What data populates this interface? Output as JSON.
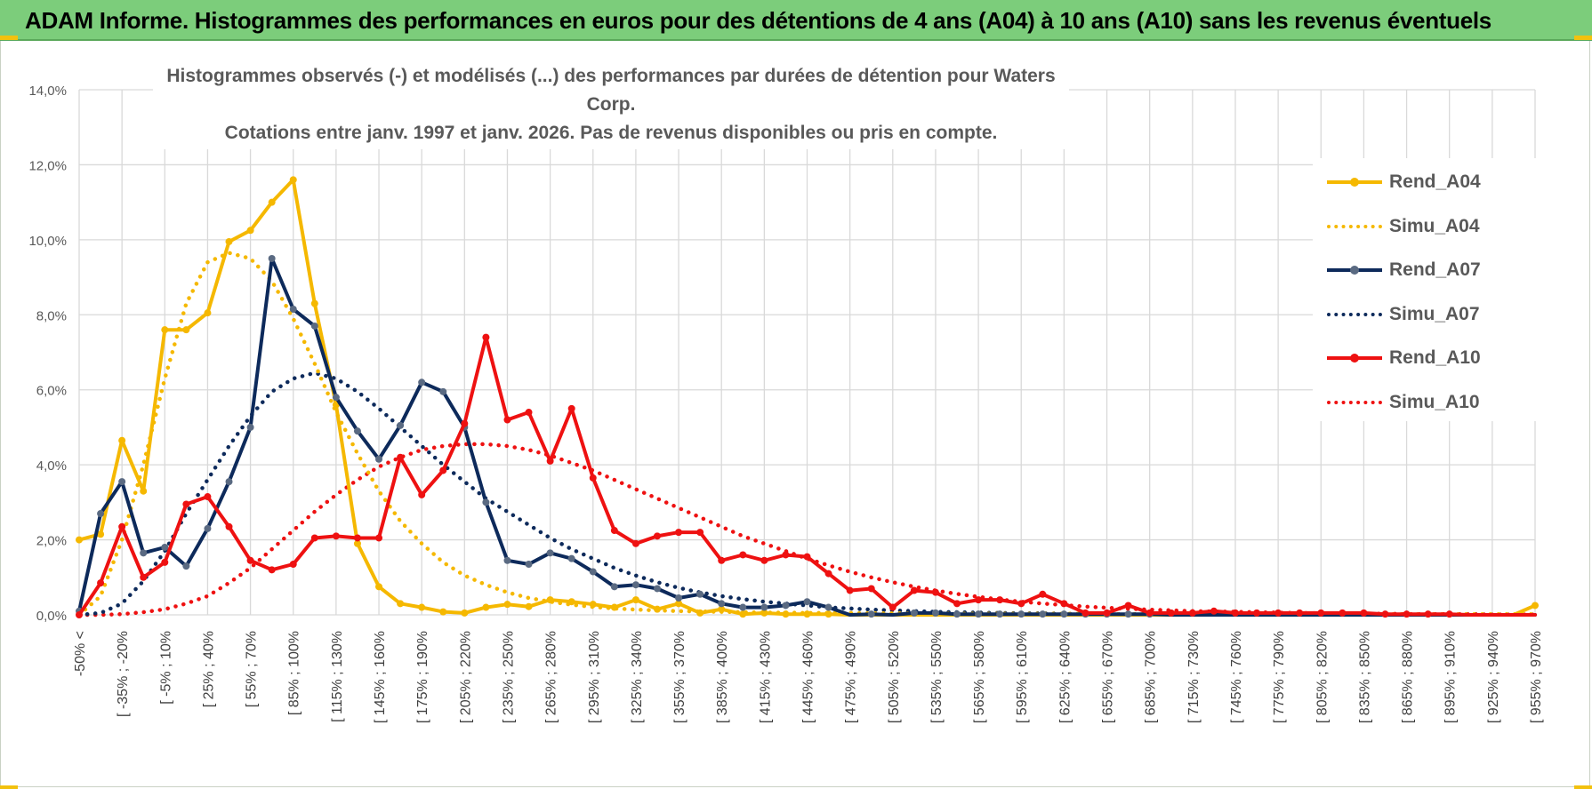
{
  "banner": {
    "title": "ADAM Informe. Histogrammes des performances en euros pour des détentions de 4 ans (A04) à 10 ans (A10) sans les revenus éventuels"
  },
  "colors": {
    "banner": "#7ccd7b",
    "A04": "#f5b800",
    "A07": "#0d2a5b",
    "A07_marker": "#5a6a82",
    "A10": "#ee1111",
    "grid": "#d9d9d9",
    "text": "#595959"
  },
  "chart_data": {
    "type": "line",
    "title_line1": "Histogrammes observés (-) et modélisés (...) des performances par durées de détention pour Waters Corp.",
    "title_line2": "Cotations entre janv. 1997 et janv. 2026. Pas de revenus disponibles ou pris en compte.",
    "xlabel": "",
    "ylabel": "",
    "ylim": [
      0,
      14
    ],
    "yticks": [
      "0,0%",
      "2,0%",
      "4,0%",
      "6,0%",
      "8,0%",
      "10,0%",
      "12,0%",
      "14,0%"
    ],
    "grid": true,
    "legend_position": "right",
    "x_tick_labels": [
      "-50% <",
      "[ -35% ; -20%",
      "[ -5% ; 10%",
      "[ 25% ; 40%",
      "[ 55% ; 70%",
      "[ 85% ; 100%",
      "[ 115% ; 130%",
      "[ 145% ; 160%",
      "[ 175% ; 190%",
      "[ 205% ; 220%",
      "[ 235% ; 250%",
      "[ 265% ; 280%",
      "[ 295% ; 310%",
      "[ 325% ; 340%",
      "[ 355% ; 370%",
      "[ 385% ; 400%",
      "[ 415% ; 430%",
      "[ 445% ; 460%",
      "[ 475% ; 490%",
      "[ 505% ; 520%",
      "[ 535% ; 550%",
      "[ 565% ; 580%",
      "[ 595% ; 610%",
      "[ 625% ; 640%",
      "[ 655% ; 670%",
      "[ 685% ; 700%",
      "[ 715% ; 730%",
      "[ 745% ; 760%",
      "[ 775% ; 790%",
      "[ 805% ; 820%",
      "[ 835% ; 850%",
      "[ 865% ; 880%",
      "[ 895% ; 910%",
      "[ 925% ; 940%",
      "[ 955% ; 970%"
    ],
    "n_categories": 69,
    "series": [
      {
        "name": "Rend_A04",
        "style": "solid",
        "color": "#f5b800",
        "markers": true,
        "values": [
          2.0,
          2.15,
          4.65,
          3.3,
          7.6,
          7.6,
          8.05,
          9.95,
          10.25,
          11.0,
          11.6,
          8.3,
          5.6,
          1.9,
          0.75,
          0.3,
          0.2,
          0.08,
          0.05,
          0.2,
          0.28,
          0.22,
          0.4,
          0.35,
          0.28,
          0.2,
          0.4,
          0.15,
          0.3,
          0.05,
          0.15,
          0.02,
          0.05,
          0.02,
          0.02,
          0.02,
          0.0,
          0.0,
          0.0,
          0.0,
          0.0,
          0.0,
          0.0,
          0.0,
          0.0,
          0.0,
          0.0,
          0.0,
          0.0,
          0.0,
          0.0,
          0.0,
          0.0,
          0.0,
          0.0,
          0.0,
          0.0,
          0.0,
          0.0,
          0.0,
          0.0,
          0.0,
          0.0,
          0.0,
          0.0,
          0.0,
          0.0,
          0.0,
          0.25
        ]
      },
      {
        "name": "Simu_A04",
        "style": "dotted",
        "color": "#f5b800",
        "markers": false,
        "values": [
          0.0,
          0.5,
          2.0,
          4.0,
          6.3,
          8.3,
          9.4,
          9.65,
          9.5,
          8.9,
          7.9,
          6.7,
          5.4,
          4.3,
          3.3,
          2.5,
          1.9,
          1.4,
          1.05,
          0.8,
          0.6,
          0.45,
          0.35,
          0.27,
          0.21,
          0.17,
          0.14,
          0.12,
          0.1,
          0.09,
          0.08,
          0.07,
          0.06,
          0.06,
          0.05,
          0.05,
          0.05,
          0.04,
          0.04,
          0.04,
          0.04,
          0.03,
          0.03,
          0.03,
          0.03,
          0.03,
          0.03,
          0.03,
          0.02,
          0.02,
          0.02,
          0.02,
          0.02,
          0.02,
          0.02,
          0.02,
          0.02,
          0.02,
          0.02,
          0.02,
          0.02,
          0.02,
          0.02,
          0.02,
          0.02,
          0.02,
          0.02,
          0.02,
          0.02
        ]
      },
      {
        "name": "Rend_A07",
        "style": "solid",
        "color": "#0d2a5b",
        "markers": true,
        "values": [
          0.1,
          2.7,
          3.55,
          1.65,
          1.8,
          1.3,
          2.3,
          3.55,
          5.0,
          9.5,
          8.15,
          7.7,
          5.8,
          4.9,
          4.15,
          5.05,
          6.2,
          5.95,
          5.0,
          3.0,
          1.45,
          1.35,
          1.65,
          1.5,
          1.15,
          0.75,
          0.8,
          0.7,
          0.45,
          0.55,
          0.3,
          0.2,
          0.2,
          0.25,
          0.35,
          0.2,
          0.0,
          0.02,
          0.0,
          0.05,
          0.05,
          0.02,
          0.02,
          0.02,
          0.02,
          0.02,
          0.02,
          0.02,
          0.02,
          0.02,
          0.02,
          0.0,
          0.0,
          0.0,
          0.0,
          0.0,
          0.0,
          0.0,
          0.0,
          0.0,
          0.0,
          0.0,
          0.0,
          0.0,
          0.0,
          0.0,
          0.0,
          0.0,
          0.0
        ]
      },
      {
        "name": "Simu_A07",
        "style": "dotted",
        "color": "#0d2a5b",
        "markers": false,
        "values": [
          0.0,
          0.05,
          0.3,
          0.9,
          1.7,
          2.7,
          3.6,
          4.5,
          5.3,
          5.95,
          6.3,
          6.45,
          6.3,
          5.95,
          5.5,
          5.0,
          4.5,
          4.0,
          3.55,
          3.1,
          2.75,
          2.4,
          2.05,
          1.75,
          1.5,
          1.25,
          1.05,
          0.87,
          0.72,
          0.6,
          0.5,
          0.42,
          0.35,
          0.3,
          0.25,
          0.2,
          0.17,
          0.14,
          0.12,
          0.1,
          0.08,
          0.07,
          0.06,
          0.05,
          0.04,
          0.04,
          0.03,
          0.03,
          0.02,
          0.02,
          0.02,
          0.02,
          0.01,
          0.01,
          0.01,
          0.01,
          0.01,
          0.01,
          0.01,
          0.01,
          0.01,
          0.01,
          0.01,
          0.01,
          0.01,
          0.01,
          0.01,
          0.01,
          0.01
        ]
      },
      {
        "name": "Rend_A10",
        "style": "solid",
        "color": "#ee1111",
        "markers": true,
        "values": [
          0.0,
          0.85,
          2.35,
          1.0,
          1.4,
          2.95,
          3.15,
          2.35,
          1.45,
          1.2,
          1.35,
          2.05,
          2.1,
          2.05,
          2.05,
          4.2,
          3.2,
          3.85,
          5.1,
          7.4,
          5.2,
          5.4,
          4.1,
          5.5,
          3.65,
          2.25,
          1.9,
          2.1,
          2.2,
          2.2,
          1.45,
          1.6,
          1.45,
          1.6,
          1.55,
          1.1,
          0.65,
          0.7,
          0.2,
          0.65,
          0.6,
          0.3,
          0.4,
          0.4,
          0.3,
          0.55,
          0.3,
          0.05,
          0.05,
          0.25,
          0.05,
          0.05,
          0.05,
          0.1,
          0.05,
          0.05,
          0.05,
          0.05,
          0.05,
          0.05,
          0.05,
          0.02,
          0.02,
          0.02,
          0.02,
          0.0,
          0.0,
          0.0,
          0.0
        ]
      },
      {
        "name": "Simu_A10",
        "style": "dotted",
        "color": "#ee1111",
        "markers": false,
        "values": [
          0.0,
          0.0,
          0.02,
          0.07,
          0.15,
          0.3,
          0.5,
          0.85,
          1.25,
          1.75,
          2.25,
          2.75,
          3.2,
          3.6,
          3.95,
          4.2,
          4.4,
          4.5,
          4.55,
          4.55,
          4.5,
          4.4,
          4.25,
          4.05,
          3.85,
          3.6,
          3.35,
          3.1,
          2.85,
          2.6,
          2.35,
          2.1,
          1.9,
          1.7,
          1.5,
          1.32,
          1.15,
          1.0,
          0.87,
          0.75,
          0.65,
          0.56,
          0.48,
          0.41,
          0.35,
          0.3,
          0.26,
          0.22,
          0.19,
          0.16,
          0.14,
          0.12,
          0.1,
          0.09,
          0.08,
          0.07,
          0.06,
          0.05,
          0.04,
          0.04,
          0.03,
          0.03,
          0.02,
          0.02,
          0.02,
          0.02,
          0.01,
          0.01,
          0.01
        ]
      }
    ]
  }
}
